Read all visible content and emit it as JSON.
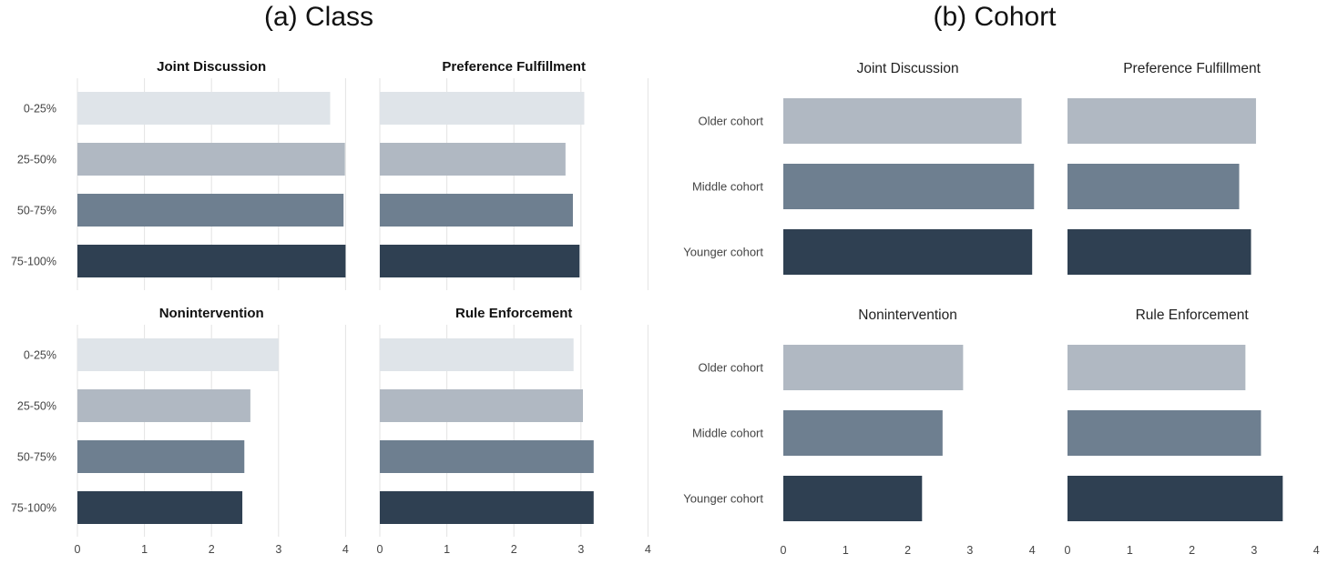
{
  "figure_a": {
    "title": "(a) Class"
  },
  "figure_b": {
    "title": "(b) Cohort"
  },
  "palette": {
    "class": [
      "#dfe4e9",
      "#b0b8c2",
      "#6e7f90",
      "#2f4052"
    ],
    "cohort": [
      "#b0b8c2",
      "#6e7f90",
      "#2f4052"
    ],
    "grid": "#e3e3e3",
    "text": "#444444"
  },
  "chart_data": [
    {
      "type": "bar",
      "orientation": "horizontal",
      "group": "(a) Class",
      "title": "Joint Discussion",
      "categories": [
        "0-25%",
        "25-50%",
        "50-75%",
        "75-100%"
      ],
      "values": [
        3.77,
        3.99,
        3.97,
        4.0
      ],
      "xlim": [
        0,
        4
      ],
      "xticks": [
        "0",
        "1",
        "2",
        "3",
        "4"
      ],
      "grid": true
    },
    {
      "type": "bar",
      "orientation": "horizontal",
      "group": "(a) Class",
      "title": "Preference Fulfillment",
      "categories": [
        "0-25%",
        "25-50%",
        "50-75%",
        "75-100%"
      ],
      "values": [
        3.05,
        2.77,
        2.88,
        2.98
      ],
      "xlim": [
        0,
        4
      ],
      "xticks": [
        "0",
        "1",
        "2",
        "3",
        "4"
      ],
      "grid": true
    },
    {
      "type": "bar",
      "orientation": "horizontal",
      "group": "(a) Class",
      "title": "Nonintervention",
      "categories": [
        "0-25%",
        "25-50%",
        "50-75%",
        "75-100%"
      ],
      "values": [
        3.0,
        2.58,
        2.49,
        2.46
      ],
      "xlim": [
        0,
        4
      ],
      "xticks": [
        "0",
        "1",
        "2",
        "3",
        "4"
      ],
      "grid": true
    },
    {
      "type": "bar",
      "orientation": "horizontal",
      "group": "(a) Class",
      "title": "Rule Enforcement",
      "categories": [
        "0-25%",
        "25-50%",
        "50-75%",
        "75-100%"
      ],
      "values": [
        2.89,
        3.03,
        3.19,
        3.19
      ],
      "xlim": [
        0,
        4
      ],
      "xticks": [
        "0",
        "1",
        "2",
        "3",
        "4"
      ],
      "grid": true
    },
    {
      "type": "bar",
      "orientation": "horizontal",
      "group": "(b) Cohort",
      "title": "Joint Discussion",
      "categories": [
        "Older cohort",
        "Middle cohort",
        "Younger cohort"
      ],
      "values": [
        3.83,
        4.03,
        4.0
      ],
      "xlim": [
        0,
        4
      ],
      "xticks": [
        "0",
        "1",
        "2",
        "3",
        "4"
      ],
      "grid": false
    },
    {
      "type": "bar",
      "orientation": "horizontal",
      "group": "(b) Cohort",
      "title": "Preference Fulfillment",
      "categories": [
        "Older cohort",
        "Middle cohort",
        "Younger cohort"
      ],
      "values": [
        3.03,
        2.76,
        2.95
      ],
      "xlim": [
        0,
        4
      ],
      "xticks": [
        "0",
        "1",
        "2",
        "3",
        "4"
      ],
      "grid": false
    },
    {
      "type": "bar",
      "orientation": "horizontal",
      "group": "(b) Cohort",
      "title": "Nonintervention",
      "categories": [
        "Older cohort",
        "Middle cohort",
        "Younger cohort"
      ],
      "values": [
        2.89,
        2.56,
        2.23
      ],
      "xlim": [
        0,
        4
      ],
      "xticks": [
        "0",
        "1",
        "2",
        "3",
        "4"
      ],
      "grid": false
    },
    {
      "type": "bar",
      "orientation": "horizontal",
      "group": "(b) Cohort",
      "title": "Rule Enforcement",
      "categories": [
        "Older cohort",
        "Middle cohort",
        "Younger cohort"
      ],
      "values": [
        2.86,
        3.11,
        3.46
      ],
      "xlim": [
        0,
        4
      ],
      "xticks": [
        "0",
        "1",
        "2",
        "3",
        "4"
      ],
      "grid": false
    }
  ]
}
